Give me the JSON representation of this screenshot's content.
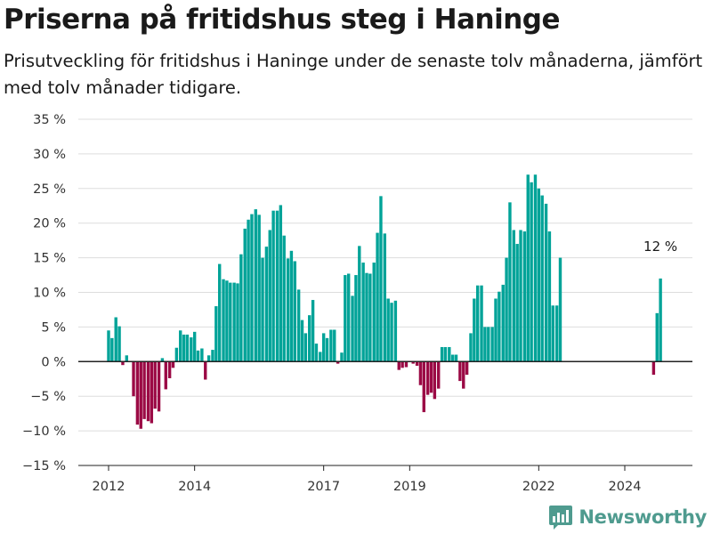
{
  "title": "Priserna på fritidshus steg i Haninge",
  "subtitle": "Prisutveckling för fritidshus i Haninge under de senaste tolv månaderna, jämfört med tolv månader tidigare.",
  "brand": {
    "name": "Newsworthy",
    "icon": "newsworthy-logo-icon",
    "color": "#4f9b8f"
  },
  "colors": {
    "positive": "#00a398",
    "negative": "#9b0a45",
    "grid": "#dddddd",
    "zero_line": "#222222"
  },
  "chart_data": {
    "type": "bar",
    "title": "Priserna på fritidshus steg i Haninge",
    "subtitle": "Prisutveckling för fritidshus i Haninge under de senaste tolv månaderna, jämfört med tolv månader tidigare.",
    "xlabel": "",
    "ylabel": "",
    "ylim": [
      -15,
      35
    ],
    "y_ticks": [
      -15,
      -10,
      -5,
      0,
      5,
      10,
      15,
      20,
      25,
      30,
      35
    ],
    "y_tick_labels": [
      "−15 %",
      "−10 %",
      "−5 %",
      "0 %",
      "5 %",
      "10 %",
      "15 %",
      "20 %",
      "25 %",
      "30 %",
      "35 %"
    ],
    "x_ticks": [
      2012,
      2014,
      2017,
      2019,
      2022,
      2024
    ],
    "x_tick_labels": [
      "2012",
      "2014",
      "2017",
      "2019",
      "2022",
      "2024"
    ],
    "grid": true,
    "unit": "%",
    "series": [
      {
        "values": [
          [
            2012.0,
            4.5
          ],
          [
            2012.08,
            3.4
          ],
          [
            2012.17,
            6.4
          ],
          [
            2012.25,
            5.1
          ],
          [
            2012.33,
            -0.5
          ],
          [
            2012.42,
            0.9
          ],
          [
            2012.58,
            -5.0
          ],
          [
            2012.67,
            -9.1
          ],
          [
            2012.75,
            -9.7
          ],
          [
            2012.83,
            -8.3
          ],
          [
            2012.92,
            -8.6
          ],
          [
            2013.0,
            -8.9
          ],
          [
            2013.08,
            -6.8
          ],
          [
            2013.17,
            -7.2
          ],
          [
            2013.25,
            0.5
          ],
          [
            2013.33,
            -4.0
          ],
          [
            2013.42,
            -2.4
          ],
          [
            2013.5,
            -0.9
          ],
          [
            2013.58,
            2.0
          ],
          [
            2013.67,
            4.5
          ],
          [
            2013.75,
            3.9
          ],
          [
            2013.83,
            3.9
          ],
          [
            2013.92,
            3.5
          ],
          [
            2014.0,
            4.3
          ],
          [
            2014.08,
            1.6
          ],
          [
            2014.17,
            1.9
          ],
          [
            2014.25,
            -2.6
          ],
          [
            2014.33,
            0.9
          ],
          [
            2014.42,
            1.7
          ],
          [
            2014.5,
            8.0
          ],
          [
            2014.58,
            14.1
          ],
          [
            2014.67,
            11.9
          ],
          [
            2014.75,
            11.7
          ],
          [
            2014.83,
            11.4
          ],
          [
            2014.92,
            11.4
          ],
          [
            2015.0,
            11.3
          ],
          [
            2015.08,
            15.5
          ],
          [
            2015.17,
            19.2
          ],
          [
            2015.25,
            20.5
          ],
          [
            2015.33,
            21.3
          ],
          [
            2015.42,
            22.0
          ],
          [
            2015.5,
            21.2
          ],
          [
            2015.58,
            15.0
          ],
          [
            2015.67,
            16.6
          ],
          [
            2015.75,
            19.0
          ],
          [
            2015.83,
            21.8
          ],
          [
            2015.92,
            21.8
          ],
          [
            2016.0,
            22.6
          ],
          [
            2016.08,
            18.2
          ],
          [
            2016.17,
            14.9
          ],
          [
            2016.25,
            16.0
          ],
          [
            2016.33,
            14.5
          ],
          [
            2016.42,
            10.4
          ],
          [
            2016.5,
            6.0
          ],
          [
            2016.58,
            4.1
          ],
          [
            2016.67,
            6.7
          ],
          [
            2016.75,
            8.9
          ],
          [
            2016.83,
            2.6
          ],
          [
            2016.92,
            1.4
          ],
          [
            2017.0,
            4.1
          ],
          [
            2017.08,
            3.4
          ],
          [
            2017.17,
            4.6
          ],
          [
            2017.25,
            4.6
          ],
          [
            2017.33,
            -0.3
          ],
          [
            2017.42,
            1.3
          ],
          [
            2017.5,
            12.5
          ],
          [
            2017.58,
            12.7
          ],
          [
            2017.67,
            9.5
          ],
          [
            2017.75,
            12.5
          ],
          [
            2017.83,
            16.7
          ],
          [
            2017.92,
            14.3
          ],
          [
            2018.0,
            12.8
          ],
          [
            2018.08,
            12.7
          ],
          [
            2018.17,
            14.3
          ],
          [
            2018.25,
            18.6
          ],
          [
            2018.33,
            23.9
          ],
          [
            2018.42,
            18.5
          ],
          [
            2018.5,
            9.1
          ],
          [
            2018.58,
            8.5
          ],
          [
            2018.67,
            8.8
          ],
          [
            2018.75,
            -1.2
          ],
          [
            2018.83,
            -0.9
          ],
          [
            2018.92,
            -0.8
          ],
          [
            2019.08,
            -0.3
          ],
          [
            2019.17,
            -0.6
          ],
          [
            2019.25,
            -3.4
          ],
          [
            2019.33,
            -7.3
          ],
          [
            2019.42,
            -4.8
          ],
          [
            2019.5,
            -4.5
          ],
          [
            2019.58,
            -5.4
          ],
          [
            2019.67,
            -3.9
          ],
          [
            2019.75,
            2.1
          ],
          [
            2019.83,
            2.1
          ],
          [
            2019.92,
            2.1
          ],
          [
            2020.0,
            1.0
          ],
          [
            2020.08,
            1.0
          ],
          [
            2020.17,
            -2.8
          ],
          [
            2020.25,
            -3.9
          ],
          [
            2020.33,
            -1.9
          ],
          [
            2020.42,
            4.1
          ],
          [
            2020.5,
            9.1
          ],
          [
            2020.58,
            11.0
          ],
          [
            2020.67,
            11.0
          ],
          [
            2020.75,
            5.0
          ],
          [
            2020.83,
            5.0
          ],
          [
            2020.92,
            5.0
          ],
          [
            2021.0,
            9.1
          ],
          [
            2021.08,
            10.1
          ],
          [
            2021.17,
            11.1
          ],
          [
            2021.25,
            15.0
          ],
          [
            2021.33,
            23.0
          ],
          [
            2021.42,
            19.0
          ],
          [
            2021.5,
            17.0
          ],
          [
            2021.58,
            19.0
          ],
          [
            2021.67,
            18.8
          ],
          [
            2021.75,
            27.0
          ],
          [
            2021.83,
            25.9
          ],
          [
            2021.92,
            27.0
          ],
          [
            2022.0,
            25.0
          ],
          [
            2022.08,
            24.0
          ],
          [
            2022.17,
            22.8
          ],
          [
            2022.25,
            18.8
          ],
          [
            2022.33,
            8.1
          ],
          [
            2022.42,
            8.1
          ],
          [
            2022.5,
            15.0
          ],
          [
            2024.67,
            -1.9
          ],
          [
            2024.75,
            7.0
          ],
          [
            2024.83,
            12.0
          ]
        ]
      }
    ],
    "annotations": [
      {
        "text": "12 %",
        "x": 2024.83,
        "y": 12.0
      }
    ]
  }
}
